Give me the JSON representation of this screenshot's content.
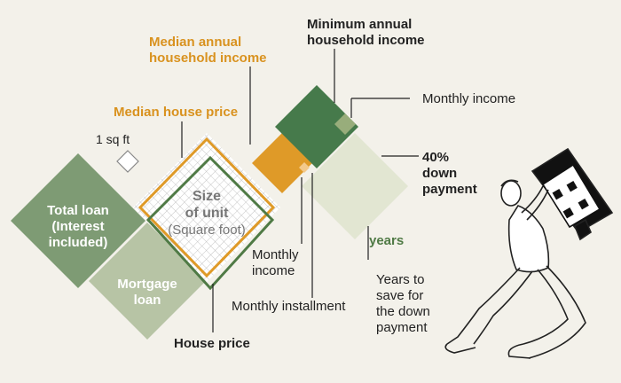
{
  "labels": {
    "minimum_income": [
      "Minimum annual",
      "household income"
    ],
    "median_income": [
      "Median annual",
      "household income"
    ],
    "median_price": "Median house price",
    "sq_ft": "1 sq ft",
    "total_loan": [
      "Total loan",
      "(Interest",
      "included)"
    ],
    "size_of_unit": [
      "Size",
      "of unit"
    ],
    "square_foot": "(Square foot)",
    "mortgage_loan": [
      "Mortgage",
      "loan"
    ],
    "house_price": "House price",
    "monthly_income_top": "Monthly income",
    "down_payment": [
      "40%",
      "down",
      "payment"
    ],
    "monthly_income_bottom": [
      "Monthly",
      "income"
    ],
    "monthly_installment": "Monthly installment",
    "years": "years",
    "years_to_save": [
      "Years to",
      "save for",
      "the down",
      "payment"
    ]
  },
  "colors": {
    "background": "#f3f1ea",
    "loan_green": "#7e9b74",
    "mortgage_green": "#b7c4a5",
    "dark_green": "#467a4b",
    "light_green": "#e2e6d2",
    "small_green": "#98ad7b",
    "orange": "#df9a28",
    "outline_green": "#4f7a45"
  },
  "icons": [
    "grid-pattern",
    "man-carrying-house-illustration"
  ]
}
